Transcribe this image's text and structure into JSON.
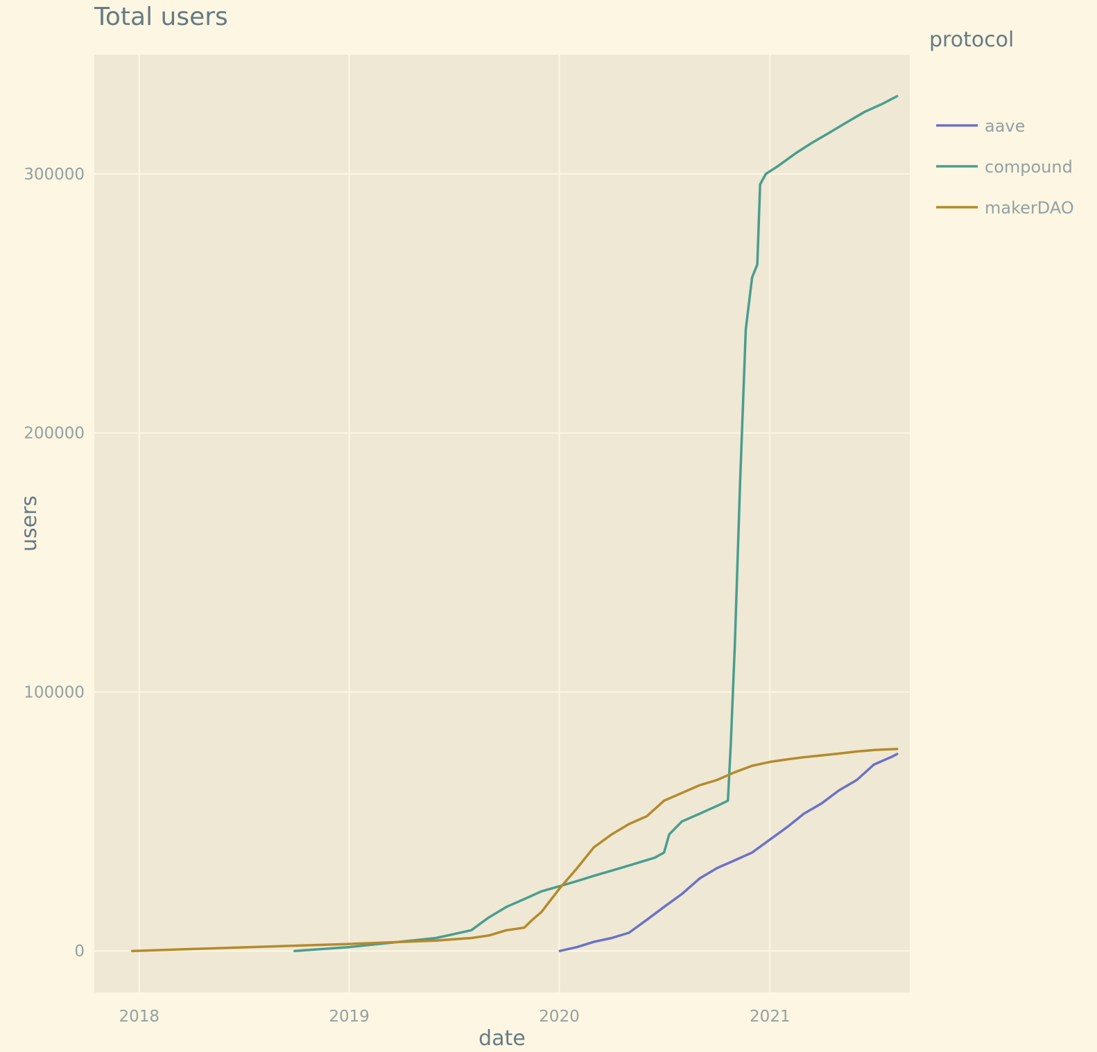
{
  "chart_data": {
    "type": "line",
    "title": "Total users",
    "xlabel": "date",
    "ylabel": "users",
    "xlim": [
      "2017-10-15",
      "2021-09-01"
    ],
    "ylim": [
      -16000,
      346000
    ],
    "x_ticks": [
      "2018",
      "2019",
      "2020",
      "2021"
    ],
    "x_tick_dates": [
      "2018-01-01",
      "2019-01-01",
      "2020-01-01",
      "2021-01-01"
    ],
    "y_ticks": [
      "0",
      "100000",
      "200000",
      "300000"
    ],
    "y_tick_values": [
      0,
      100000,
      200000,
      300000
    ],
    "grid": true,
    "legend": {
      "title": "protocol",
      "placement": "right"
    },
    "colors": {
      "paper_bg": "#fdf6e3",
      "plot_bg": "#eee8d5",
      "aave": "#6c71c4",
      "compound": "#4a9d8f",
      "makerDAO": "#b58a2a"
    },
    "series": [
      {
        "name": "aave",
        "color": "#6c71c4",
        "points": [
          [
            "2020-01-02",
            0
          ],
          [
            "2020-02-01",
            1500
          ],
          [
            "2020-03-01",
            3500
          ],
          [
            "2020-04-01",
            5000
          ],
          [
            "2020-05-01",
            7000
          ],
          [
            "2020-06-01",
            12000
          ],
          [
            "2020-07-01",
            17000
          ],
          [
            "2020-08-01",
            22000
          ],
          [
            "2020-09-01",
            28000
          ],
          [
            "2020-10-01",
            32000
          ],
          [
            "2020-11-01",
            35000
          ],
          [
            "2020-12-01",
            38000
          ],
          [
            "2021-01-01",
            43000
          ],
          [
            "2021-02-01",
            48000
          ],
          [
            "2021-03-01",
            53000
          ],
          [
            "2021-04-01",
            57000
          ],
          [
            "2021-05-01",
            62000
          ],
          [
            "2021-06-01",
            66000
          ],
          [
            "2021-07-01",
            72000
          ],
          [
            "2021-08-01",
            75000
          ],
          [
            "2021-08-10",
            76000
          ]
        ]
      },
      {
        "name": "compound",
        "color": "#4a9d8f",
        "points": [
          [
            "2018-09-28",
            0
          ],
          [
            "2019-01-01",
            1500
          ],
          [
            "2019-06-01",
            5000
          ],
          [
            "2019-08-01",
            8000
          ],
          [
            "2019-09-01",
            13000
          ],
          [
            "2019-10-01",
            17000
          ],
          [
            "2019-11-01",
            20000
          ],
          [
            "2019-12-01",
            23000
          ],
          [
            "2020-01-01",
            25000
          ],
          [
            "2020-02-01",
            27000
          ],
          [
            "2020-03-01",
            29000
          ],
          [
            "2020-04-01",
            31000
          ],
          [
            "2020-05-01",
            33000
          ],
          [
            "2020-06-15",
            36000
          ],
          [
            "2020-07-01",
            38000
          ],
          [
            "2020-07-10",
            45000
          ],
          [
            "2020-08-01",
            50000
          ],
          [
            "2020-09-01",
            53000
          ],
          [
            "2020-10-01",
            56000
          ],
          [
            "2020-10-20",
            58000
          ],
          [
            "2020-10-25",
            80000
          ],
          [
            "2020-11-01",
            118000
          ],
          [
            "2020-11-10",
            180000
          ],
          [
            "2020-11-20",
            240000
          ],
          [
            "2020-12-01",
            260000
          ],
          [
            "2020-12-10",
            265000
          ],
          [
            "2020-12-15",
            296000
          ],
          [
            "2020-12-25",
            300000
          ],
          [
            "2021-01-15",
            303000
          ],
          [
            "2021-02-15",
            308000
          ],
          [
            "2021-03-15",
            312000
          ],
          [
            "2021-04-15",
            316000
          ],
          [
            "2021-05-15",
            320000
          ],
          [
            "2021-06-15",
            324000
          ],
          [
            "2021-07-15",
            327000
          ],
          [
            "2021-08-10",
            330000
          ]
        ]
      },
      {
        "name": "makerDAO",
        "color": "#b58a2a",
        "points": [
          [
            "2017-12-20",
            0
          ],
          [
            "2019-01-01",
            2700
          ],
          [
            "2019-06-01",
            4000
          ],
          [
            "2019-08-01",
            5000
          ],
          [
            "2019-09-01",
            6000
          ],
          [
            "2019-10-01",
            8000
          ],
          [
            "2019-11-01",
            9000
          ],
          [
            "2019-11-15",
            12000
          ],
          [
            "2019-12-01",
            15000
          ],
          [
            "2020-01-01",
            24000
          ],
          [
            "2020-02-01",
            32000
          ],
          [
            "2020-03-01",
            40000
          ],
          [
            "2020-04-01",
            45000
          ],
          [
            "2020-05-01",
            49000
          ],
          [
            "2020-06-01",
            52000
          ],
          [
            "2020-07-01",
            58000
          ],
          [
            "2020-08-01",
            61000
          ],
          [
            "2020-09-01",
            64000
          ],
          [
            "2020-10-01",
            66000
          ],
          [
            "2020-11-01",
            69000
          ],
          [
            "2020-12-01",
            71500
          ],
          [
            "2021-01-01",
            73000
          ],
          [
            "2021-02-01",
            74000
          ],
          [
            "2021-03-01",
            74800
          ],
          [
            "2021-04-01",
            75500
          ],
          [
            "2021-05-01",
            76200
          ],
          [
            "2021-06-01",
            77000
          ],
          [
            "2021-07-01",
            77600
          ],
          [
            "2021-08-10",
            78000
          ]
        ]
      }
    ]
  }
}
